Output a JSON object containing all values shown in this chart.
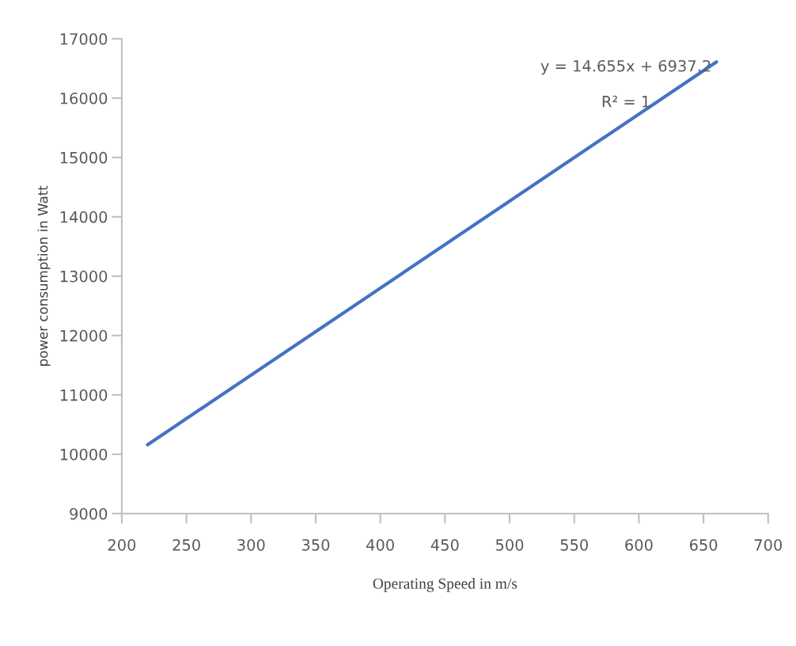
{
  "chart_data": {
    "type": "line",
    "xlabel": "Operating Speed in m/s",
    "ylabel": "power consumption in Watt",
    "x": [
      220,
      660
    ],
    "series": [
      {
        "color": "#4472c4",
        "values": [
          10160,
          16610
        ]
      }
    ],
    "xlim": [
      200,
      700
    ],
    "xticks": [
      200,
      250,
      300,
      350,
      400,
      450,
      500,
      550,
      600,
      650,
      700
    ],
    "ylim": [
      9000,
      17000
    ],
    "yticks": [
      9000,
      10000,
      11000,
      12000,
      13000,
      14000,
      15000,
      16000,
      17000
    ],
    "grid": false,
    "legend": false,
    "marker": "none",
    "line_style": "solid",
    "annotations": [
      "y = 14.655x + 6937.2",
      "R² = 1"
    ]
  }
}
